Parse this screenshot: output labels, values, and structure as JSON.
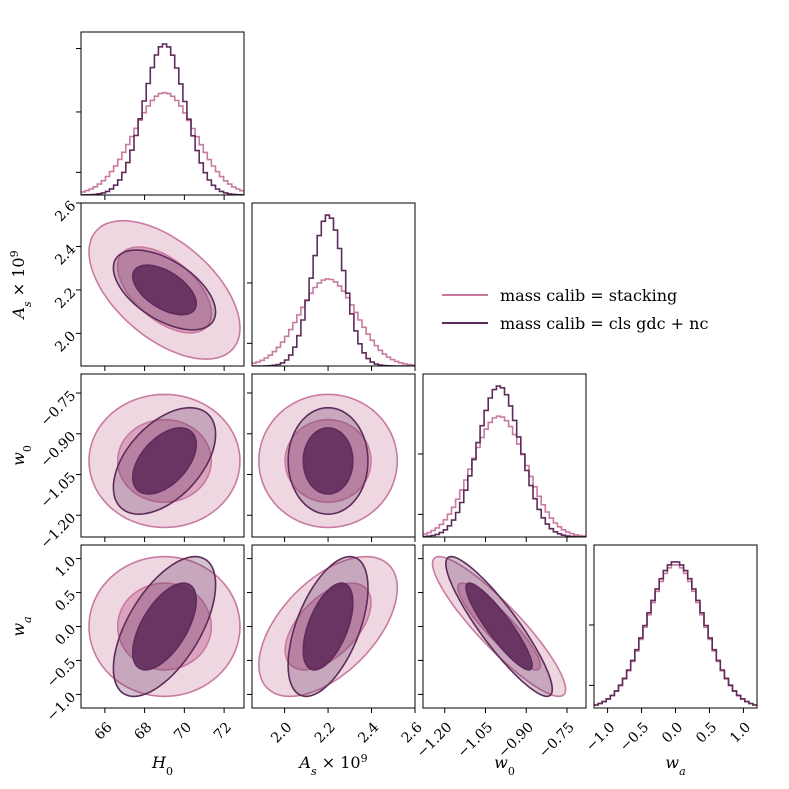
{
  "colors": {
    "stacking": "#c97aa0",
    "cls": "#5e2b5b"
  },
  "legend": {
    "entries": [
      {
        "series": "stacking",
        "label": "mass calib = stacking"
      },
      {
        "series": "cls",
        "label": "mass calib = cls gdc + nc"
      }
    ]
  },
  "chart_data": {
    "type": "corner",
    "parameters": [
      {
        "key": "H0",
        "label": "H_0",
        "range": [
          64.8,
          73.0
        ],
        "ticks": [
          66,
          68,
          70,
          72
        ],
        "tick_labels": [
          "66",
          "68",
          "70",
          "72"
        ]
      },
      {
        "key": "As",
        "label": "A_s × 10^9",
        "range": [
          1.85,
          2.6
        ],
        "ticks": [
          2.0,
          2.2,
          2.4,
          2.6
        ],
        "tick_labels": [
          "2.0",
          "2.2",
          "2.4",
          "2.6"
        ]
      },
      {
        "key": "w0",
        "label": "w_0",
        "range": [
          -1.28,
          -0.68
        ],
        "ticks": [
          -1.2,
          -1.05,
          -0.9,
          -0.75
        ],
        "tick_labels": [
          "−1.20",
          "−1.05",
          "−0.90",
          "−0.75"
        ]
      },
      {
        "key": "wa",
        "label": "w_a",
        "range": [
          -1.2,
          1.2
        ],
        "ticks": [
          -1.0,
          -0.5,
          0.0,
          0.5,
          1.0
        ],
        "tick_labels": [
          "−1.0",
          "−0.5",
          "0.0",
          "0.5",
          "1.0"
        ]
      }
    ],
    "series": [
      {
        "name": "mass calib = stacking",
        "key": "stacking",
        "mean": [
          69.0,
          2.2,
          -1.0,
          0.0
        ],
        "sigma": [
          1.55,
          0.13,
          0.1,
          0.42
        ],
        "corr": {
          "H0_As": -0.55,
          "H0_w0": 0.0,
          "H0_wa": 0.0,
          "As_w0": 0.0,
          "As_wa": 0.55,
          "w0_wa": -0.9
        }
      },
      {
        "name": "mass calib = cls gdc + nc",
        "key": "cls",
        "mean": [
          69.0,
          2.2,
          -1.0,
          0.0
        ],
        "sigma": [
          1.05,
          0.075,
          0.08,
          0.42
        ],
        "corr": {
          "H0_As": -0.55,
          "H0_w0": 0.5,
          "H0_wa": 0.6,
          "As_w0": 0.0,
          "As_wa": 0.55,
          "w0_wa": -0.9
        }
      }
    ]
  }
}
